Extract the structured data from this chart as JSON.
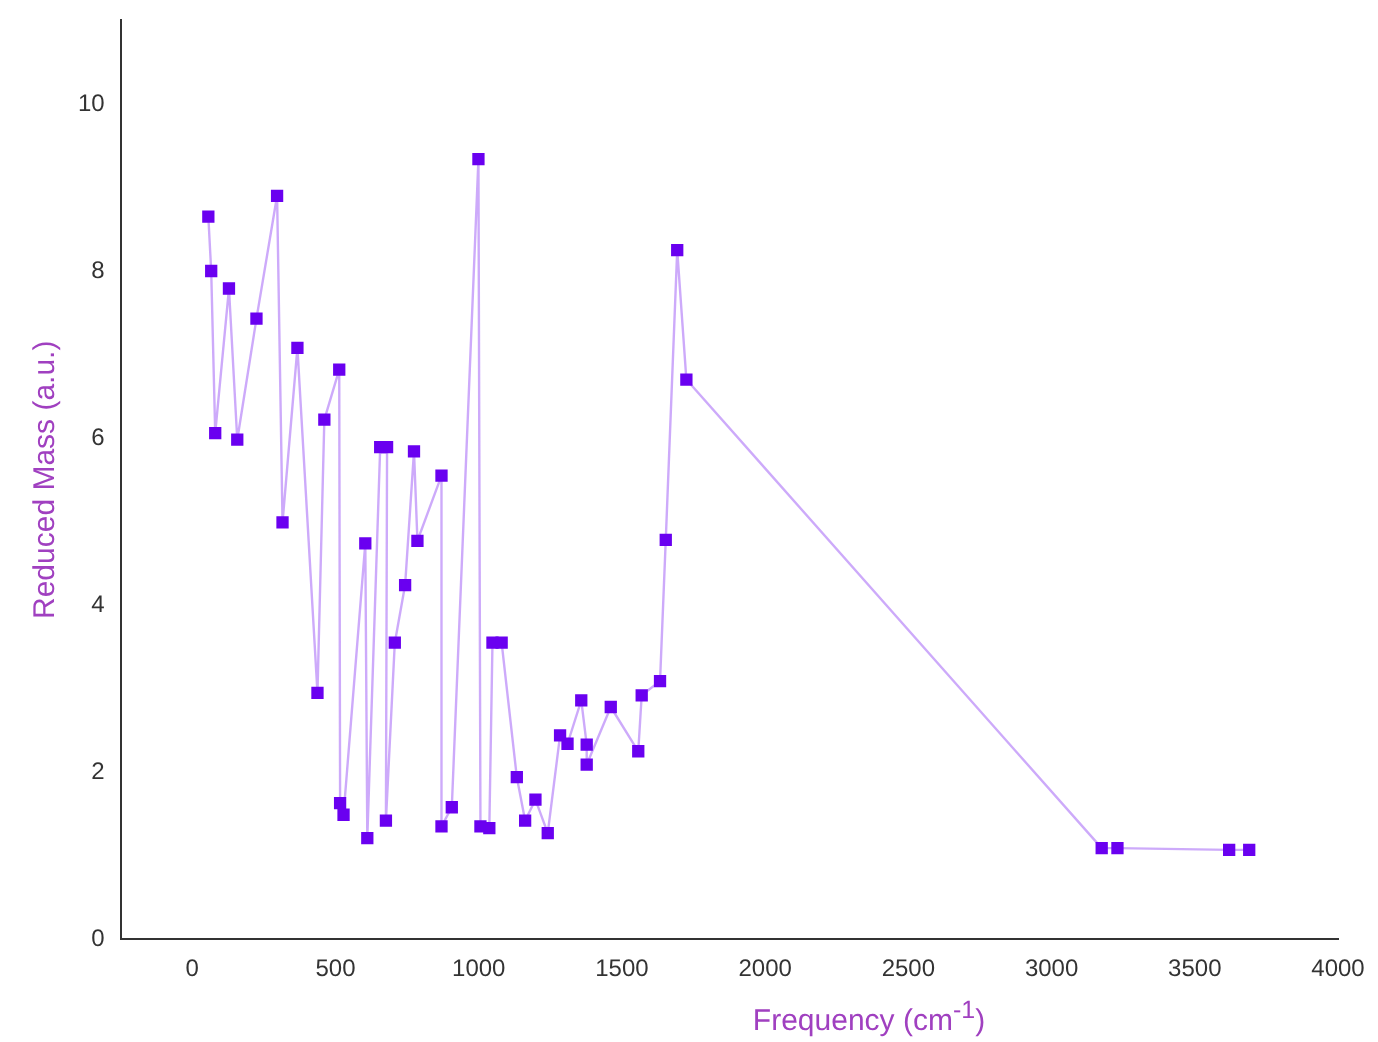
{
  "chart_data": {
    "type": "line",
    "xlabel": "Frequency (cm$^{-1}$)",
    "ylabel": "Reduced Mass (a.u.)",
    "xlim": [
      -250,
      4000
    ],
    "xticks": [
      0,
      500,
      1000,
      1500,
      2000,
      2500,
      3000,
      3500,
      4000
    ],
    "ylim": [
      0,
      11
    ],
    "yticks": [
      0,
      2,
      4,
      6,
      8,
      10
    ],
    "grid": false,
    "legend": false,
    "marker": "square",
    "line_style": "solid",
    "series": [
      {
        "color": "#6a00f0",
        "x": [
          56,
          66,
          80,
          128,
          157,
          224,
          296,
          315,
          367,
          437,
          461,
          513,
          516,
          528,
          604,
          611,
          656,
          680,
          676,
          707,
          743,
          774,
          786,
          870,
          870,
          906,
          999,
          1006,
          1037,
          1048,
          1080,
          1133,
          1162,
          1198,
          1241,
          1284,
          1310,
          1358,
          1377,
          1377,
          1461,
          1557,
          1569,
          1633,
          1653,
          1693,
          1725,
          3175,
          3230,
          3620,
          3690
        ],
        "values": [
          8.65,
          8.0,
          6.06,
          7.79,
          5.98,
          7.43,
          8.9,
          4.99,
          7.08,
          2.95,
          6.22,
          6.82,
          1.63,
          1.49,
          4.74,
          1.21,
          5.89,
          5.89,
          1.42,
          3.55,
          4.24,
          5.84,
          4.77,
          5.55,
          1.35,
          1.58,
          9.34,
          1.35,
          1.33,
          3.55,
          3.55,
          1.94,
          1.42,
          1.67,
          1.27,
          2.44,
          2.34,
          2.86,
          2.33,
          2.09,
          2.78,
          2.25,
          2.92,
          3.09,
          4.78,
          8.25,
          6.7,
          1.09,
          1.09,
          1.07,
          1.07
        ]
      }
    ]
  }
}
